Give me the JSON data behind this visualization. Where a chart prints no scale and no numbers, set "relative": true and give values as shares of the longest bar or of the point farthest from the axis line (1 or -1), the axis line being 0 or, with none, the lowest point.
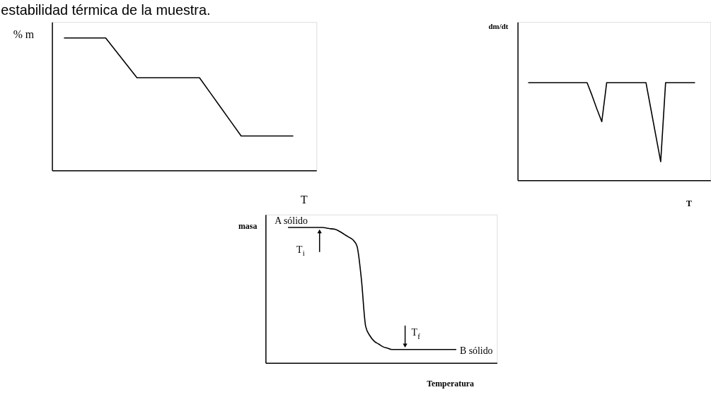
{
  "chart_data": [
    {
      "type": "line",
      "annotations": [
        "estabilidad térmica de la muestra."
      ],
      "ylabel": "% m",
      "xlabel": "T",
      "relative": true,
      "grid": false,
      "categories": [
        null,
        null,
        null,
        null,
        null,
        null,
        null,
        null,
        null,
        null,
        null,
        null,
        null,
        null,
        null,
        null,
        null,
        null,
        null,
        null,
        null,
        null,
        null
      ],
      "series": [
        {
          "color": "#000000",
          "values": [
            1,
            1,
            1,
            1,
            1,
            0.9,
            0.8,
            0.7,
            0.7,
            0.7,
            0.7,
            0.7,
            0.7,
            0.7,
            0.59,
            0.48,
            0.37,
            0.26,
            0.26,
            0.26,
            0.26,
            0.26,
            0.26
          ]
        }
      ]
    },
    {
      "type": "line",
      "ylabel": "dm/dt",
      "xlabel": "T",
      "relative": true,
      "grid": false,
      "categories": [
        null,
        null,
        null,
        null,
        null,
        null,
        null,
        null,
        null,
        null,
        null,
        null,
        null,
        null,
        null,
        null,
        null,
        null,
        null,
        null,
        null,
        null,
        null,
        null,
        null,
        null,
        null,
        null,
        null,
        null,
        null,
        null,
        null,
        null,
        null
      ],
      "series": [
        {
          "color": "#000000",
          "values": [
            1,
            1,
            1,
            1,
            1,
            1,
            1,
            1,
            1,
            1,
            1,
            1,
            1,
            0.87,
            0.73,
            0.6,
            1,
            1,
            1,
            1,
            1,
            1,
            1,
            1,
            1,
            0.73,
            0.46,
            0.19,
            1,
            1,
            1,
            1,
            1,
            1,
            1
          ]
        }
      ]
    },
    {
      "type": "line",
      "ylabel": "masa",
      "xlabel": "Temperatura",
      "relative": true,
      "grid": false,
      "categories": [
        null,
        null,
        null,
        null,
        null,
        null,
        null,
        null,
        null,
        null,
        null,
        null,
        null,
        null,
        null,
        null,
        null,
        null,
        null,
        null,
        null,
        null,
        null,
        null,
        null,
        null,
        null,
        null,
        null,
        null,
        null,
        null,
        null,
        null,
        null,
        null,
        null,
        null,
        null,
        null
      ],
      "series": [
        {
          "color": "#000000",
          "values": [
            1,
            1,
            1,
            1,
            1,
            1,
            1,
            1,
            1,
            0.995,
            0.99,
            0.986,
            0.97,
            0.95,
            0.93,
            0.91,
            0.86,
            0.62,
            0.27,
            0.2,
            0.16,
            0.14,
            0.12,
            0.11,
            0.1,
            0.1,
            0.1,
            0.1,
            0.1,
            0.1,
            0.1,
            0.1,
            0.1,
            0.1,
            0.1,
            0.1,
            0.1,
            0.1,
            0.1,
            0.1
          ]
        }
      ],
      "annotations": [
        "A sólido",
        "T$_{i}$",
        "T$_{f}$",
        "B sólido"
      ]
    }
  ]
}
